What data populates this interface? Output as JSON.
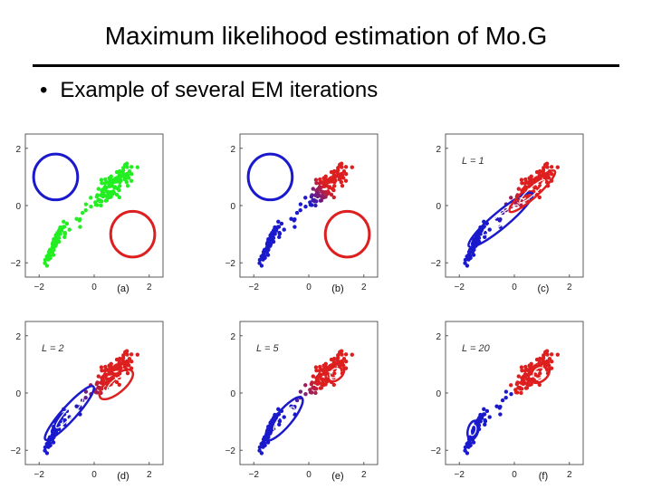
{
  "slide": {
    "title": "Maximum likelihood estimation of Mo.G",
    "bullet_marker": "•",
    "bullet": "Example of several EM iterations"
  },
  "colors": {
    "blue": "#1a1acc",
    "red": "#dd1f1f",
    "green": "#22ee22"
  },
  "chart_data": [
    {
      "type": "scatter",
      "panel_label": "(a)",
      "iteration_label": "",
      "xlim": [
        -2.5,
        2.5
      ],
      "ylim": [
        -2.5,
        2.5
      ],
      "xticks": [
        "−2",
        "0",
        "2"
      ],
      "yticks": [
        "2",
        "0",
        "−2"
      ],
      "point_color": "green",
      "ellipses": [
        {
          "color": "blue",
          "cx": -1.4,
          "cy": 1.0,
          "rx": 0.8,
          "ry": 0.8,
          "angle": 0
        },
        {
          "color": "red",
          "cx": 1.4,
          "cy": -1.0,
          "rx": 0.8,
          "ry": 0.8,
          "angle": 0
        }
      ]
    },
    {
      "type": "scatter",
      "panel_label": "(b)",
      "iteration_label": "",
      "xlim": [
        -2.5,
        2.5
      ],
      "ylim": [
        -2.5,
        2.5
      ],
      "xticks": [
        "−2",
        "0",
        "2"
      ],
      "yticks": [
        "2",
        "0",
        "−2"
      ],
      "point_color": "responsibility",
      "ellipses": [
        {
          "color": "blue",
          "cx": -1.4,
          "cy": 1.0,
          "rx": 0.8,
          "ry": 0.8,
          "angle": 0
        },
        {
          "color": "red",
          "cx": 1.4,
          "cy": -1.0,
          "rx": 0.8,
          "ry": 0.8,
          "angle": 0
        }
      ]
    },
    {
      "type": "scatter",
      "panel_label": "(c)",
      "iteration_label": "L = 1",
      "xlim": [
        -2.5,
        2.5
      ],
      "ylim": [
        -2.5,
        2.5
      ],
      "xticks": [
        "−2",
        "0",
        "2"
      ],
      "yticks": [
        "2",
        "0",
        "−2"
      ],
      "point_color": "responsibility",
      "ellipses": [
        {
          "color": "blue",
          "cx": -0.5,
          "cy": -0.5,
          "rx": 1.5,
          "ry": 0.28,
          "angle": 40
        },
        {
          "color": "red",
          "cx": 0.65,
          "cy": 0.5,
          "rx": 1.1,
          "ry": 0.22,
          "angle": 42
        }
      ]
    },
    {
      "type": "scatter",
      "panel_label": "(d)",
      "iteration_label": "L = 2",
      "xlim": [
        -2.5,
        2.5
      ],
      "ylim": [
        -2.5,
        2.5
      ],
      "xticks": [
        "−2",
        "0",
        "2"
      ],
      "yticks": [
        "2",
        "0",
        "−2"
      ],
      "point_color": "responsibility",
      "ellipses": [
        {
          "color": "blue",
          "cx": -0.9,
          "cy": -0.7,
          "rx": 1.3,
          "ry": 0.25,
          "angle": 48
        },
        {
          "color": "red",
          "cx": 0.8,
          "cy": 0.3,
          "rx": 0.75,
          "ry": 0.3,
          "angle": 40
        }
      ]
    },
    {
      "type": "scatter",
      "panel_label": "(e)",
      "iteration_label": "L = 5",
      "xlim": [
        -2.5,
        2.5
      ],
      "ylim": [
        -2.5,
        2.5
      ],
      "xticks": [
        "−2",
        "0",
        "2"
      ],
      "yticks": [
        "2",
        "0",
        "−2"
      ],
      "point_color": "responsibility",
      "ellipses": [
        {
          "color": "blue",
          "cx": -0.9,
          "cy": -0.9,
          "rx": 1.0,
          "ry": 0.28,
          "angle": 50
        },
        {
          "color": "red",
          "cx": 0.95,
          "cy": 0.7,
          "rx": 0.38,
          "ry": 0.25,
          "angle": 40
        }
      ]
    },
    {
      "type": "scatter",
      "panel_label": "(f)",
      "iteration_label": "L = 20",
      "xlim": [
        -2.5,
        2.5
      ],
      "ylim": [
        -2.5,
        2.5
      ],
      "xticks": [
        "−2",
        "0",
        "2"
      ],
      "yticks": [
        "2",
        "0",
        "−2"
      ],
      "point_color": "hard-assignment",
      "ellipses": [
        {
          "color": "blue",
          "cx": -1.5,
          "cy": -1.3,
          "rx": 0.35,
          "ry": 0.18,
          "angle": 75
        },
        {
          "color": "red",
          "cx": 0.9,
          "cy": 0.7,
          "rx": 0.42,
          "ry": 0.3,
          "angle": 40
        }
      ]
    }
  ]
}
